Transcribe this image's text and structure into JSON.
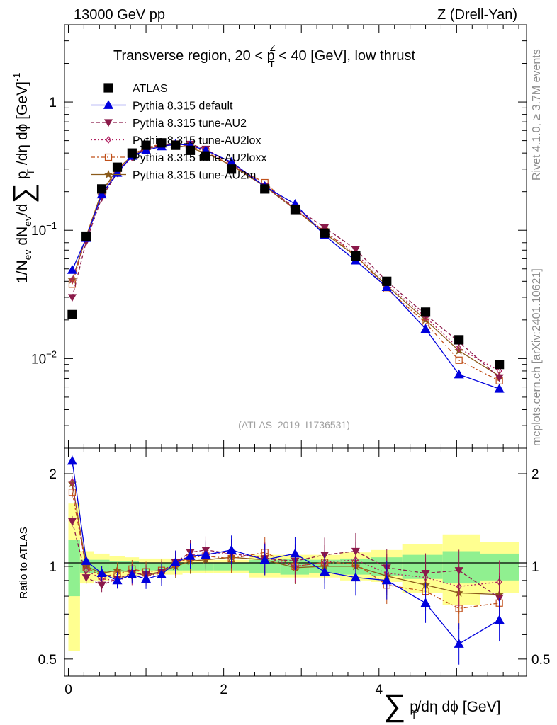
{
  "header": {
    "energy": "13000 GeV pp",
    "process": "Z (Drell-Yan)"
  },
  "side_labels": {
    "rivet": "Rivet 4.1.0, ≥ 3.7M events",
    "source": "mcplots.cern.ch [arXiv:2401.10621]"
  },
  "colors": {
    "atlas": "#000000",
    "default": "#0000dd",
    "au2": "#8b1a4a",
    "au2lox": "#b02060",
    "au2loxx": "#c0501a",
    "au2m": "#8b5a1a",
    "band_green": "#90f090",
    "band_yellow": "#ffff90"
  },
  "chart_data": [
    {
      "type": "line",
      "title": "Transverse region, 20 < p_T^Z < 40 [GeV], low thrust",
      "title_parts": [
        "Transverse region, 20 < p",
        "Z",
        "T",
        " < 40 [GeV], low thrust"
      ],
      "ylabel": "1/N_ev dN_ev/d∑ p_T/dη dφ [GeV]^-1",
      "yscale": "log",
      "ylim": [
        0.002,
        4
      ],
      "xlim": [
        -0.05,
        5.9
      ],
      "y_ticks": [
        0.01,
        0.1,
        1
      ],
      "y_tick_labels": [
        {
          "base": "10",
          "exp": "−2"
        },
        {
          "base": "10",
          "exp": "−1"
        },
        {
          "base": "1",
          "exp": ""
        }
      ],
      "watermark": "(ATLAS_2019_I1736531)",
      "x": [
        0.05,
        0.23,
        0.43,
        0.63,
        0.82,
        1.0,
        1.2,
        1.38,
        1.57,
        1.77,
        2.1,
        2.53,
        2.92,
        3.3,
        3.7,
        4.1,
        4.6,
        5.03,
        5.55
      ],
      "series": [
        {
          "name": "ATLAS",
          "key": "atlas",
          "values": [
            0.022,
            0.09,
            0.21,
            0.31,
            0.4,
            0.46,
            0.48,
            0.46,
            0.42,
            0.38,
            0.3,
            0.21,
            0.145,
            0.095,
            0.063,
            0.04,
            0.023,
            0.014,
            0.009
          ]
        },
        {
          "name": "Pythia 8.315 default",
          "key": "default",
          "values": [
            0.049,
            0.087,
            0.19,
            0.28,
            0.38,
            0.42,
            0.45,
            0.47,
            0.46,
            0.42,
            0.34,
            0.22,
            0.16,
            0.091,
            0.058,
            0.036,
            0.017,
            0.0075,
            0.0058
          ]
        },
        {
          "name": "Pythia 8.315 tune-AU2",
          "key": "au2",
          "values": [
            0.03,
            0.082,
            0.18,
            0.28,
            0.38,
            0.44,
            0.46,
            0.47,
            0.47,
            0.43,
            0.33,
            0.22,
            0.15,
            0.105,
            0.071,
            0.04,
            0.022,
            0.0135,
            0.0071
          ]
        },
        {
          "name": "Pythia 8.315 tune-AU2lox",
          "key": "au2lox",
          "values": [
            0.041,
            0.087,
            0.19,
            0.28,
            0.37,
            0.43,
            0.46,
            0.47,
            0.46,
            0.42,
            0.33,
            0.225,
            0.146,
            0.098,
            0.066,
            0.038,
            0.021,
            0.012,
            0.008
          ]
        },
        {
          "name": "Pythia 8.315 tune-AU2loxx",
          "key": "au2loxx",
          "values": [
            0.038,
            0.089,
            0.195,
            0.29,
            0.39,
            0.44,
            0.47,
            0.47,
            0.45,
            0.41,
            0.32,
            0.235,
            0.145,
            0.098,
            0.064,
            0.035,
            0.019,
            0.0097,
            0.0067
          ]
        },
        {
          "name": "Pythia 8.315 tune-AU2m",
          "key": "au2m",
          "values": [
            0.041,
            0.09,
            0.2,
            0.3,
            0.38,
            0.43,
            0.46,
            0.46,
            0.44,
            0.4,
            0.32,
            0.22,
            0.145,
            0.095,
            0.063,
            0.037,
            0.02,
            0.0115,
            0.0073
          ]
        }
      ]
    },
    {
      "type": "line",
      "title": "",
      "ylabel": "Ratio to ATLAS",
      "xlabel": "∑ p_T/dη dφ [GeV]",
      "yscale": "log",
      "ylim": [
        0.44,
        2.42
      ],
      "xlim": [
        -0.05,
        5.9
      ],
      "y_ticks": [
        0.5,
        1,
        2
      ],
      "y_tick_labels": [
        "0.5",
        "1",
        "2"
      ],
      "x_ticks": [
        0,
        2,
        4
      ],
      "x_tick_labels": [
        "0",
        "2",
        "4"
      ],
      "reference_line": 1,
      "x_bin_edges": [
        0.0,
        0.15,
        0.33,
        0.53,
        0.73,
        0.91,
        1.1,
        1.3,
        1.47,
        1.67,
        1.87,
        2.33,
        2.73,
        3.1,
        3.5,
        3.9,
        4.3,
        4.82,
        5.3,
        5.8
      ],
      "bands": {
        "green_low": [
          0.8,
          0.95,
          0.95,
          0.96,
          0.96,
          0.97,
          0.97,
          0.97,
          0.97,
          0.97,
          0.97,
          0.95,
          0.94,
          0.95,
          0.94,
          0.93,
          0.91,
          0.88,
          0.9
        ],
        "green_high": [
          1.22,
          1.05,
          1.05,
          1.04,
          1.04,
          1.03,
          1.03,
          1.03,
          1.03,
          1.03,
          1.03,
          1.05,
          1.06,
          1.05,
          1.06,
          1.07,
          1.09,
          1.12,
          1.1
        ],
        "yellow_low": [
          0.53,
          0.88,
          0.9,
          0.92,
          0.93,
          0.94,
          0.94,
          0.94,
          0.95,
          0.95,
          0.95,
          0.92,
          0.92,
          0.92,
          0.9,
          0.89,
          0.82,
          0.75,
          0.82
        ],
        "yellow_high": [
          1.6,
          1.12,
          1.1,
          1.08,
          1.07,
          1.06,
          1.06,
          1.06,
          1.05,
          1.05,
          1.05,
          1.09,
          1.09,
          1.09,
          1.11,
          1.13,
          1.18,
          1.27,
          1.2
        ]
      },
      "series": [
        {
          "name": "Pythia 8.315 default",
          "key": "default",
          "values": [
            2.2,
            1.04,
            0.95,
            0.9,
            0.94,
            0.91,
            0.94,
            1.03,
            1.08,
            1.09,
            1.13,
            1.05,
            1.1,
            0.96,
            0.92,
            0.9,
            0.76,
            0.56,
            0.67
          ]
        },
        {
          "name": "Pythia 8.315 tune-AU2",
          "key": "au2",
          "values": [
            1.4,
            0.92,
            0.87,
            0.91,
            0.95,
            0.94,
            0.96,
            1.03,
            1.11,
            1.13,
            1.1,
            1.06,
            1.04,
            1.09,
            1.12,
            0.99,
            0.95,
            0.97,
            0.79
          ]
        },
        {
          "name": "Pythia 8.315 tune-AU2lox",
          "key": "au2lox",
          "values": [
            1.88,
            0.97,
            0.91,
            0.9,
            0.93,
            0.93,
            0.95,
            1.02,
            1.09,
            1.1,
            1.1,
            1.07,
            1.0,
            1.03,
            1.05,
            0.95,
            0.92,
            0.86,
            0.89
          ]
        },
        {
          "name": "Pythia 8.315 tune-AU2loxx",
          "key": "au2loxx",
          "values": [
            1.74,
            0.99,
            0.93,
            0.94,
            0.98,
            0.96,
            0.97,
            1.02,
            1.07,
            1.08,
            1.06,
            1.11,
            1.0,
            1.03,
            1.02,
            0.87,
            0.83,
            0.73,
            0.76
          ]
        },
        {
          "name": "Pythia 8.315 tune-AU2m",
          "key": "au2m",
          "values": [
            1.86,
            1.0,
            0.95,
            0.97,
            0.96,
            0.93,
            0.96,
            1.0,
            1.04,
            1.05,
            1.07,
            1.05,
            0.99,
            1.0,
            1.0,
            0.93,
            0.87,
            0.82,
            0.81
          ]
        }
      ]
    }
  ]
}
